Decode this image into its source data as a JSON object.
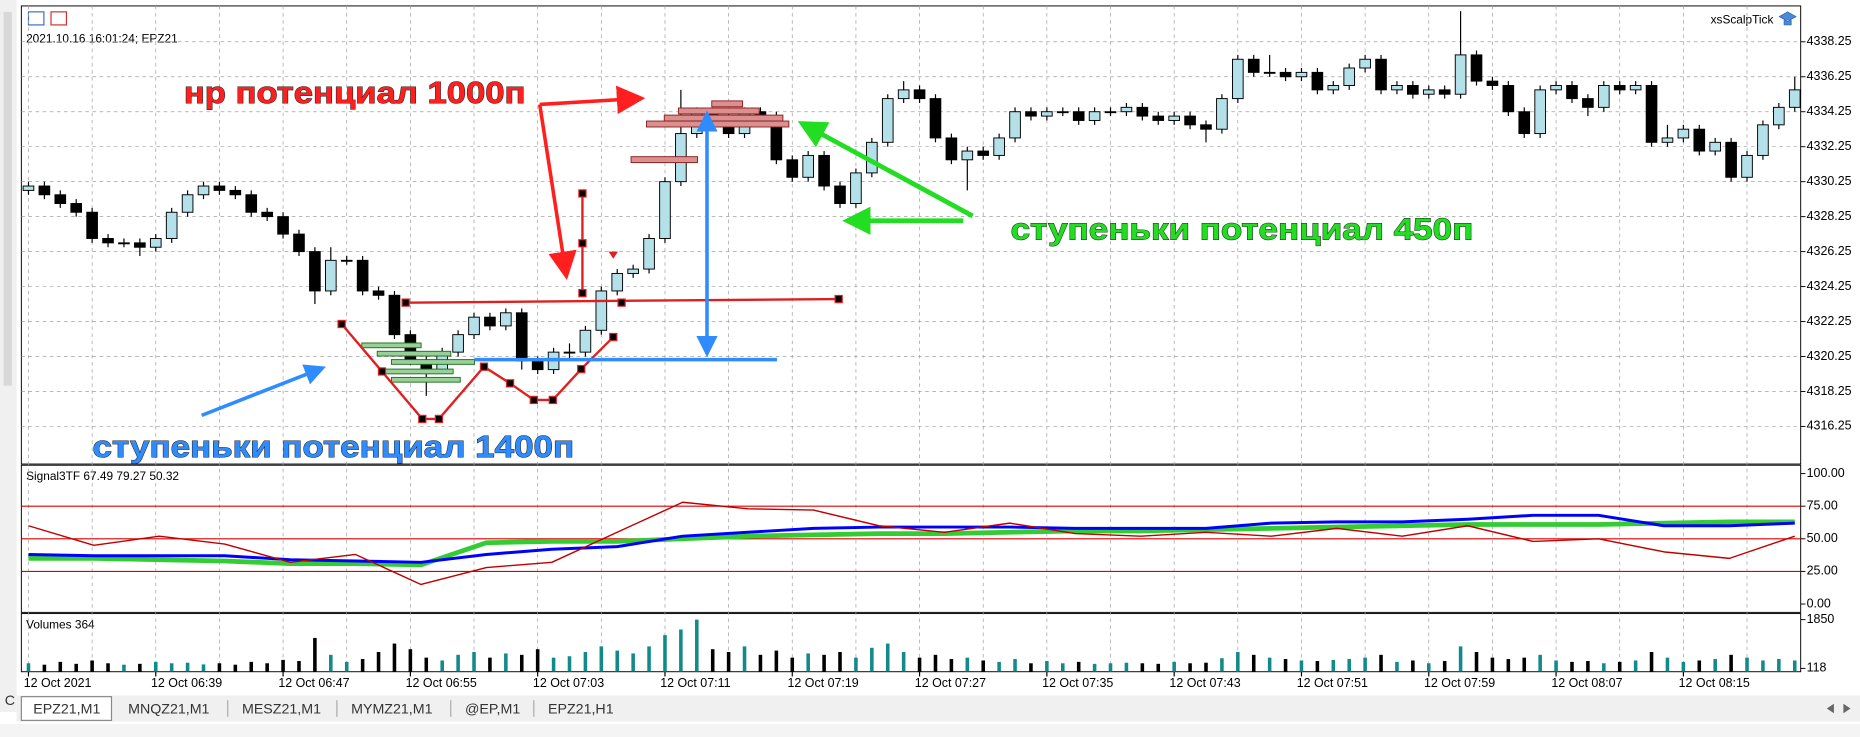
{
  "chart_data": [
    {
      "type": "candlestick",
      "title": "2021.10.16 16:01:24; EPZ21",
      "indicator_name": "xsScalpTick",
      "open": [
        4329.75,
        4330,
        4329.5,
        4329,
        4328.5,
        4327,
        4326.75,
        4326.75,
        4326.5,
        4327,
        4328.5,
        4329.5,
        4330,
        4329.75,
        4329.5,
        4328.5,
        4328.25,
        4327.25,
        4326.25,
        4324,
        4325.75,
        4325.75,
        4324,
        4323.75,
        4321.5,
        4320,
        4319.5,
        4320.5,
        4321.5,
        4322.5,
        4322,
        4322.75,
        4320,
        4319.5,
        4320.5,
        4320.5,
        4321.75,
        4324,
        4325,
        4325.25,
        4327,
        4330.25,
        4333,
        4334.25,
        4334,
        4333,
        4334.25,
        4334,
        4331.5,
        4330.5,
        4331.75,
        4330,
        4329,
        4330.75,
        4332.5,
        4335,
        4335.5,
        4335,
        4332.75,
        4331.5,
        4332,
        4331.75,
        4332.75,
        4334.25,
        4334,
        4334.25,
        4334.25,
        4333.75,
        4334.25,
        4334.25,
        4334.5,
        4334,
        4333.75,
        4334,
        4333.5,
        4333.25,
        4335,
        4337.25,
        4336.5,
        4336.5,
        4336.25,
        4336.5,
        4335.5,
        4335.75,
        4336.75,
        4337.25,
        4335.5,
        4335.75,
        4335.25,
        4335.5,
        4335.25,
        4337.5,
        4336,
        4335.75,
        4334.25,
        4333,
        4335.5,
        4335.75,
        4335,
        4334.5,
        4335.75,
        4335.5,
        4335.75,
        4332.5,
        4332.75,
        4333.25,
        4332,
        4332.5,
        4330.5,
        4331.75,
        4333.5,
        4334.5
      ],
      "high": [
        4330.25,
        4330.25,
        4329.75,
        4329.25,
        4328.75,
        4327.25,
        4327,
        4327,
        4327.25,
        4328.75,
        4329.75,
        4330.25,
        4330.25,
        4330,
        4329.75,
        4328.75,
        4328.5,
        4327.5,
        4326.5,
        4326.5,
        4326,
        4326,
        4324.25,
        4324,
        4321.75,
        4320.25,
        4320.75,
        4321.75,
        4322.75,
        4322.75,
        4323,
        4323,
        4320.25,
        4320.75,
        4321,
        4322,
        4324.25,
        4325.25,
        4325.5,
        4327.25,
        4330.5,
        4335.5,
        4334.5,
        4334.5,
        4334.25,
        4334.5,
        4334.5,
        4334.25,
        4331.75,
        4332,
        4332,
        4330.25,
        4331,
        4332.75,
        4335.25,
        4336,
        4335.75,
        4335.25,
        4333,
        4332.25,
        4332.25,
        4333,
        4334.5,
        4334.5,
        4334.5,
        4334.5,
        4334.5,
        4334.5,
        4334.5,
        4334.75,
        4334.75,
        4334.25,
        4334.25,
        4334.25,
        4333.75,
        4335.25,
        4337.5,
        4337.5,
        4337.5,
        4336.75,
        4336.75,
        4336.75,
        4336,
        4337,
        4337.5,
        4337.5,
        4336,
        4336,
        4335.75,
        4335.75,
        4340,
        4337.75,
        4336.25,
        4336,
        4334.5,
        4335.75,
        4336,
        4336,
        4335.25,
        4336,
        4336,
        4336,
        4336,
        4333.5,
        4333.5,
        4333.5,
        4332.75,
        4332.75,
        4332,
        4333.75,
        4334.75,
        4336.25
      ],
      "low": [
        4329.5,
        4329.25,
        4328.75,
        4328.25,
        4326.75,
        4326.5,
        4326.5,
        4326,
        4326.25,
        4326.75,
        4328.25,
        4329.25,
        4329.5,
        4329.25,
        4328.25,
        4328,
        4327,
        4326,
        4323.25,
        4323.75,
        4325.5,
        4323.75,
        4323.5,
        4321.25,
        4319.75,
        4318,
        4319.25,
        4320.25,
        4321.25,
        4321.75,
        4321.75,
        4319.5,
        4319.25,
        4319.25,
        4320,
        4320.25,
        4321.5,
        4323.75,
        4324.75,
        4325,
        4326.75,
        4330,
        4332.75,
        4333.75,
        4332.75,
        4332.75,
        4333.75,
        4331.25,
        4330.25,
        4330.25,
        4329.75,
        4328.75,
        4328.75,
        4330.5,
        4332.25,
        4334.75,
        4334.75,
        4332.5,
        4331.25,
        4329.75,
        4331.5,
        4331.5,
        4332.5,
        4333.75,
        4333.75,
        4334,
        4333.5,
        4333.5,
        4334,
        4334,
        4333.75,
        4333.5,
        4333.5,
        4333.25,
        4332.5,
        4333,
        4334.75,
        4336.25,
        4336.25,
        4336,
        4336,
        4335.25,
        4335.25,
        4335.5,
        4336.5,
        4335.25,
        4335.25,
        4335,
        4335,
        4335,
        4335,
        4335.75,
        4335.5,
        4334,
        4332.75,
        4332.75,
        4335.25,
        4334.75,
        4334,
        4334.25,
        4335.25,
        4335.25,
        4332.25,
        4332.25,
        4332.5,
        4331.75,
        4331.75,
        4330.25,
        4330.25,
        4331.5,
        4333.25,
        4334.25
      ],
      "close": [
        4330,
        4329.5,
        4329,
        4328.5,
        4327,
        4326.75,
        4326.75,
        4326.5,
        4327,
        4328.5,
        4329.5,
        4330,
        4329.75,
        4329.5,
        4328.5,
        4328.25,
        4327.25,
        4326.25,
        4324,
        4325.75,
        4325.75,
        4324,
        4323.75,
        4321.5,
        4320,
        4319.5,
        4320.5,
        4321.5,
        4322.5,
        4322,
        4322.75,
        4320,
        4319.5,
        4320.5,
        4320.5,
        4321.75,
        4324,
        4325,
        4325.25,
        4327,
        4330.25,
        4333,
        4334.25,
        4334,
        4333,
        4334.25,
        4334,
        4331.5,
        4330.5,
        4331.75,
        4330,
        4329,
        4330.75,
        4332.5,
        4335,
        4335.5,
        4335,
        4332.75,
        4331.5,
        4332,
        4331.75,
        4332.75,
        4334.25,
        4334,
        4334.25,
        4334.25,
        4333.75,
        4334.25,
        4334.25,
        4334.5,
        4334,
        4333.75,
        4334,
        4333.5,
        4333.25,
        4335,
        4337.25,
        4336.5,
        4336.5,
        4336.25,
        4336.5,
        4335.5,
        4335.75,
        4336.75,
        4337.25,
        4335.5,
        4335.75,
        4335.25,
        4335.5,
        4335.25,
        4337.5,
        4336,
        4335.75,
        4334.25,
        4333,
        4335.5,
        4335.75,
        4335,
        4334.5,
        4335.75,
        4335.5,
        4335.75,
        4332.5,
        4332.75,
        4333.25,
        4332,
        4332.5,
        4330.5,
        4331.75,
        4333.5,
        4334.5,
        4335.5
      ],
      "up_color": "#b4e0ea",
      "down_color": "#000000",
      "ylim": [
        4314.1,
        4340.3
      ],
      "yticks": [
        4316.25,
        4318.25,
        4320.25,
        4322.25,
        4324.25,
        4326.25,
        4328.25,
        4330.25,
        4332.25,
        4334.25,
        4336.25,
        4338.25
      ],
      "grid": true,
      "xticks": [
        {
          "value": 0,
          "label": "12 Oct 2021"
        },
        {
          "value": 8,
          "label": "12 Oct 06:39"
        },
        {
          "value": 16,
          "label": "12 Oct 06:47"
        },
        {
          "value": 24,
          "label": "12 Oct 06:55"
        },
        {
          "value": 32,
          "label": "12 Oct 07:03"
        },
        {
          "value": 40,
          "label": "12 Oct 07:11"
        },
        {
          "value": 48,
          "label": "12 Oct 07:19"
        },
        {
          "value": 56,
          "label": "12 Oct 07:27"
        },
        {
          "value": 64,
          "label": "12 Oct 07:35"
        },
        {
          "value": 72,
          "label": "12 Oct 07:43"
        },
        {
          "value": 80,
          "label": "12 Oct 07:51"
        },
        {
          "value": 88,
          "label": "12 Oct 07:59"
        },
        {
          "value": 96,
          "label": "12 Oct 08:07"
        },
        {
          "value": 104,
          "label": "12 Oct 08:15"
        }
      ],
      "annotations": [
        "нр потенциал 1000п",
        "ступеньки потенциал 450п",
        "ступеньки потенциал 1400п"
      ]
    },
    {
      "type": "line",
      "title": "Signal3TF 67.49 79.27 50.32",
      "series": [
        {
          "color": "#33cc33",
          "values": [
            35,
            35,
            34,
            33,
            31,
            31,
            30,
            47,
            48,
            48,
            50,
            52,
            53,
            54,
            54,
            55,
            56,
            56,
            57,
            58,
            59,
            60,
            61,
            61,
            61,
            62,
            63,
            63
          ]
        },
        {
          "color": "#0000ff",
          "values": [
            38,
            37,
            37,
            37,
            34,
            33,
            32,
            38,
            42,
            44,
            52,
            55,
            58,
            59,
            59,
            59,
            58,
            58,
            58,
            62,
            63,
            63,
            65,
            68,
            68,
            60,
            60,
            62
          ]
        },
        {
          "color": "#c00000",
          "values": [
            60,
            45,
            52,
            46,
            32,
            38,
            15,
            28,
            32,
            55,
            78,
            73,
            72,
            60,
            55,
            62,
            54,
            52,
            55,
            52,
            58,
            52,
            60,
            48,
            50,
            40,
            35,
            52
          ]
        }
      ],
      "levels": [
        75,
        50,
        25
      ],
      "level_color": "#e00000",
      "ylim": [
        -6.4,
        106.4
      ],
      "yticks": [
        {
          "value": 100,
          "label": "100.00"
        },
        {
          "value": 75,
          "label": "75.00"
        },
        {
          "value": 50,
          "label": "50.00"
        },
        {
          "value": 25,
          "label": "25.00"
        },
        {
          "value": 0,
          "label": "0.00"
        }
      ]
    },
    {
      "type": "bar",
      "title": "Volumes 364",
      "values": [
        300,
        250,
        350,
        280,
        400,
        300,
        250,
        280,
        350,
        300,
        320,
        260,
        300,
        250,
        350,
        300,
        420,
        380,
        1200,
        600,
        350,
        450,
        700,
        1000,
        800,
        500,
        400,
        600,
        700,
        500,
        650,
        600,
        800,
        500,
        550,
        700,
        900,
        750,
        650,
        900,
        1300,
        1500,
        1850,
        800,
        700,
        900,
        600,
        750,
        500,
        650,
        600,
        700,
        500,
        850,
        1000,
        700,
        500,
        600,
        450,
        500,
        400,
        350,
        450,
        300,
        380,
        300,
        350,
        280,
        300,
        320,
        300,
        280,
        350,
        300,
        320,
        480,
        700,
        600,
        500,
        450,
        400,
        380,
        420,
        450,
        500,
        600,
        350,
        400,
        300,
        380,
        900,
        700,
        500,
        450,
        500,
        600,
        400,
        350,
        380,
        300,
        350,
        400,
        700,
        500,
        350,
        400,
        450,
        600,
        500,
        400,
        450,
        400
      ],
      "up_color": "#138a8a",
      "down_color": "#000000",
      "ylim": [
        0,
        2065
      ],
      "yticks": [
        1850,
        118
      ]
    }
  ],
  "tabs": [
    "EPZ21,M1",
    "MNQZ21,M1",
    "MESZ21,M1",
    "MYMZ21,M1",
    "@EP,M1",
    "EPZ21,H1"
  ],
  "side_label": "C"
}
